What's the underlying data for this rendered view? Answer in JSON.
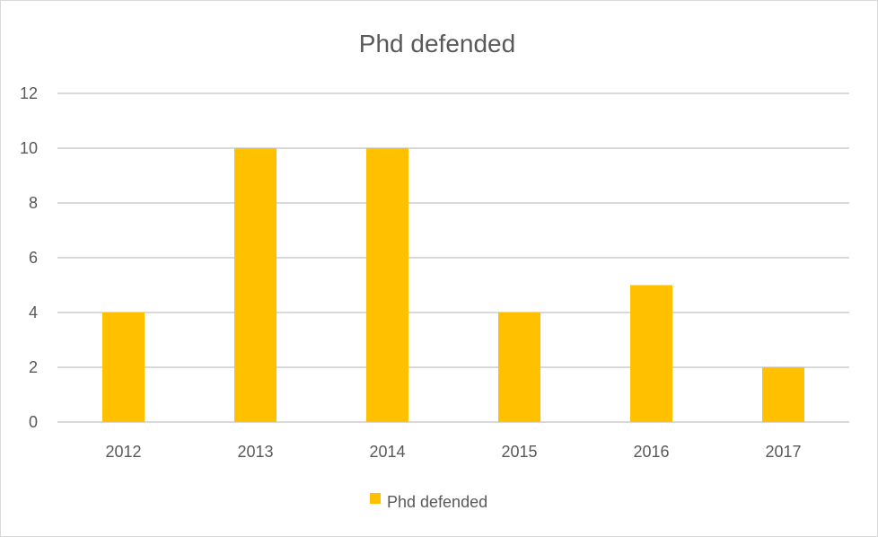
{
  "chart_data": {
    "type": "bar",
    "title": "Phd defended",
    "xlabel": "",
    "ylabel": "",
    "categories": [
      "2012",
      "2013",
      "2014",
      "2015",
      "2016",
      "2017"
    ],
    "series": [
      {
        "name": "Phd defended",
        "values": [
          4,
          10,
          10,
          4,
          5,
          2
        ],
        "color": "#FFC000"
      }
    ],
    "ylim": [
      0,
      12
    ],
    "yticks": [
      "0",
      "2",
      "4",
      "6",
      "8",
      "10",
      "12"
    ],
    "grid": true,
    "legend": "bottom",
    "gridline_color": "#D9D9D9"
  }
}
